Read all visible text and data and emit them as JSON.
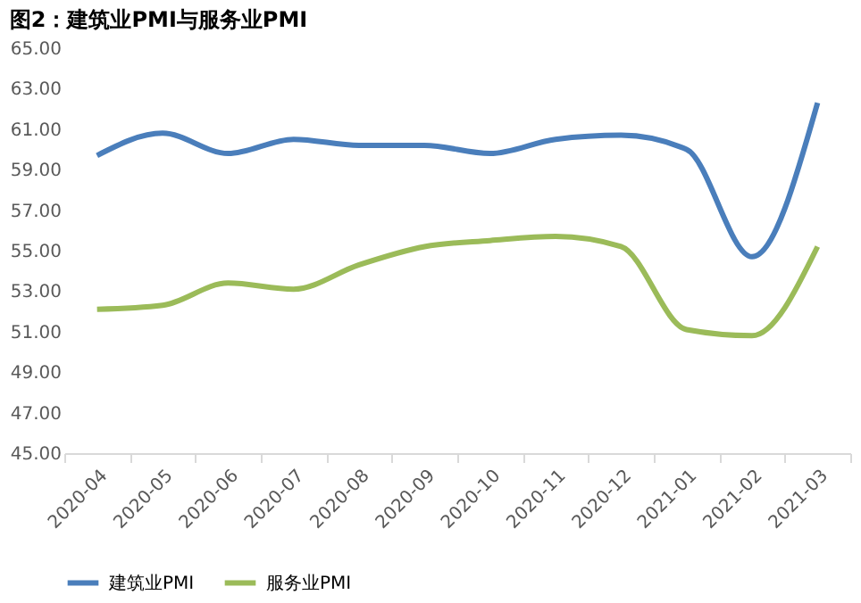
{
  "chart_data": {
    "type": "line",
    "title": "图2：建筑业PMI与服务业PMI",
    "categories": [
      "2020-04",
      "2020-05",
      "2020-06",
      "2020-07",
      "2020-08",
      "2020-09",
      "2020-10",
      "2020-11",
      "2020-12",
      "2021-01",
      "2021-02",
      "2021-03"
    ],
    "series": [
      {
        "name": "建筑业PMI",
        "color": "#4a7ebb",
        "values": [
          59.7,
          60.8,
          59.8,
          60.5,
          60.2,
          60.2,
          59.8,
          60.5,
          60.7,
          60.0,
          54.7,
          62.3
        ]
      },
      {
        "name": "服务业PMI",
        "color": "#9bbb59",
        "values": [
          52.1,
          52.3,
          53.4,
          53.1,
          54.3,
          55.2,
          55.5,
          55.7,
          55.2,
          51.1,
          50.8,
          55.2
        ]
      }
    ],
    "ylim": [
      45,
      65
    ],
    "yticks": [
      {
        "value": 45,
        "label": "45.00"
      },
      {
        "value": 47,
        "label": "47.00"
      },
      {
        "value": 49,
        "label": "49.00"
      },
      {
        "value": 51,
        "label": "51.00"
      },
      {
        "value": 53,
        "label": "53.00"
      },
      {
        "value": 55,
        "label": "55.00"
      },
      {
        "value": 57,
        "label": "57.00"
      },
      {
        "value": 59,
        "label": "59.00"
      },
      {
        "value": 61,
        "label": "61.00"
      },
      {
        "value": 63,
        "label": "63.00"
      },
      {
        "value": 65,
        "label": "65.00"
      }
    ],
    "grid": false,
    "legend": "bottom",
    "marker": "none",
    "line_style": "solid"
  }
}
